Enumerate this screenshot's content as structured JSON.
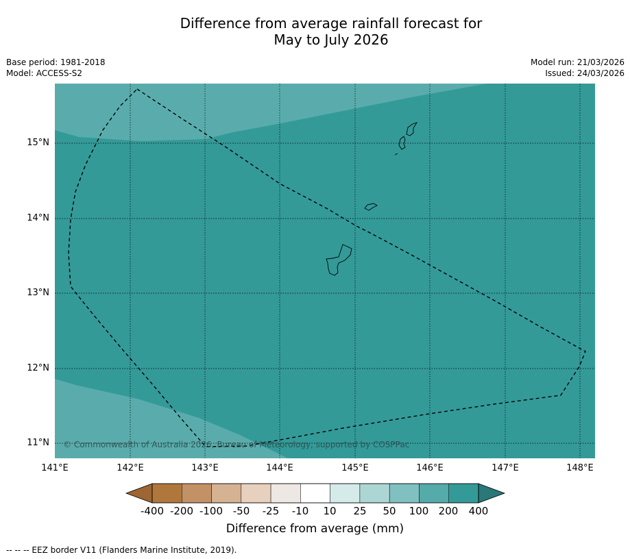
{
  "title": {
    "line1": "Difference from average rainfall forecast for",
    "line2": "May to July 2026"
  },
  "meta": {
    "base_period": "Base period: 1981-2018",
    "model": "Model: ACCESS-S2",
    "model_run": "Model run: 21/03/2026",
    "issued": "Issued: 24/03/2026"
  },
  "map": {
    "latitude_labels": [
      "15°N",
      "14°N",
      "13°N",
      "12°N",
      "11°N"
    ],
    "longitude_labels": [
      "141°E",
      "142°E",
      "143°E",
      "144°E",
      "145°E",
      "146°E",
      "147°E",
      "148°E"
    ],
    "copyright": "© Commonwealth of Australia 2026, Bureau of Meteorology, supported by COSPPac",
    "colors": {
      "band_200_400": "#339a98",
      "band_100_200": "#5aacac"
    }
  },
  "colorbar": {
    "ticks": [
      "-400",
      "-200",
      "-100",
      "-50",
      "-25",
      "-10",
      "10",
      "25",
      "50",
      "100",
      "200",
      "400"
    ],
    "colors": [
      "#9e6632",
      "#b0773d",
      "#c29166",
      "#d4b292",
      "#e8d0be",
      "#eee8e4",
      "#ffffff",
      "#d5ebea",
      "#acd6d4",
      "#80c0c0",
      "#55aaaa",
      "#339a98",
      "#2a7878"
    ],
    "label": "Difference from average (mm)"
  },
  "legend": {
    "text": "--  --  -- EEZ border V11 (Flanders Marine Institute, 2019)."
  }
}
